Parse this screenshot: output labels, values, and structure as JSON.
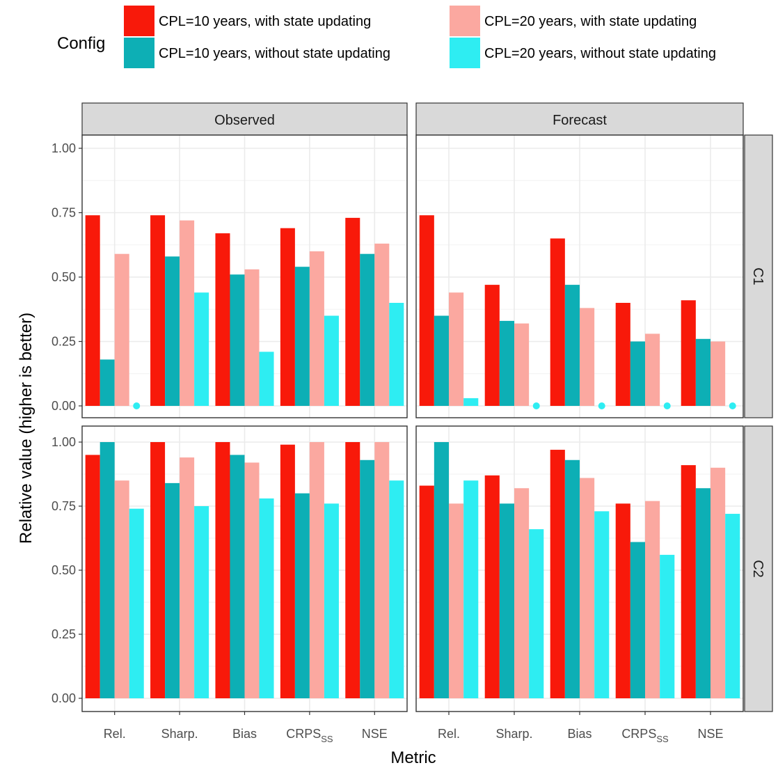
{
  "legend": {
    "title": "Config",
    "entries": [
      {
        "label": "CPL=10 years, with state updating",
        "color": "#F8190A"
      },
      {
        "label": "CPL=10 years, without state updating",
        "color": "#0DAFB5"
      },
      {
        "label": "CPL=20 years, with state updating",
        "color": "#FBA8A0"
      },
      {
        "label": "CPL=20 years, without state updating",
        "color": "#2EEDF2"
      }
    ]
  },
  "axes": {
    "xlabel": "Metric",
    "ylabel": "Relative value (higher is better)"
  },
  "chart_data": {
    "type": "bar",
    "facet_columns": [
      "Observed",
      "Forecast"
    ],
    "facet_rows": [
      "C1",
      "C2"
    ],
    "categories": [
      "Rel.",
      "Sharp.",
      "Bias",
      "CRPS",
      "NSE"
    ],
    "category_subscripts": [
      "",
      "",
      "",
      "SS",
      ""
    ],
    "ylim": [
      0,
      1.0
    ],
    "yticks": [
      "0.00",
      "0.25",
      "0.50",
      "0.75",
      "1.00"
    ],
    "grid": true,
    "legend_position": "top",
    "series_names": [
      "CPL=10 years, with state updating",
      "CPL=10 years, without state updating",
      "CPL=20 years, with state updating",
      "CPL=20 years, without state updating"
    ],
    "colors": [
      "#F8190A",
      "#0DAFB5",
      "#FBA8A0",
      "#2EEDF2"
    ],
    "panels": [
      {
        "column": "Observed",
        "row": "C1",
        "values": [
          [
            0.74,
            0.74,
            0.67,
            0.69,
            0.73
          ],
          [
            0.18,
            0.58,
            0.51,
            0.54,
            0.59
          ],
          [
            0.59,
            0.72,
            0.53,
            0.6,
            0.63
          ],
          [
            0.0,
            0.44,
            0.21,
            0.35,
            0.4
          ]
        ]
      },
      {
        "column": "Forecast",
        "row": "C1",
        "values": [
          [
            0.74,
            0.47,
            0.65,
            0.4,
            0.41
          ],
          [
            0.35,
            0.33,
            0.47,
            0.25,
            0.26
          ],
          [
            0.44,
            0.32,
            0.38,
            0.28,
            0.25
          ],
          [
            0.03,
            0.0,
            0.0,
            0.0,
            0.0
          ]
        ]
      },
      {
        "column": "Observed",
        "row": "C2",
        "values": [
          [
            0.95,
            1.0,
            1.0,
            0.99,
            1.0
          ],
          [
            1.0,
            0.84,
            0.95,
            0.8,
            0.93
          ],
          [
            0.85,
            0.94,
            0.92,
            1.0,
            1.0
          ],
          [
            0.74,
            0.75,
            0.78,
            0.76,
            0.85
          ]
        ]
      },
      {
        "column": "Forecast",
        "row": "C2",
        "values": [
          [
            0.83,
            0.87,
            0.97,
            0.76,
            0.91
          ],
          [
            1.0,
            0.76,
            0.93,
            0.61,
            0.82
          ],
          [
            0.76,
            0.82,
            0.86,
            0.77,
            0.9
          ],
          [
            0.85,
            0.66,
            0.73,
            0.56,
            0.72
          ]
        ]
      }
    ]
  }
}
